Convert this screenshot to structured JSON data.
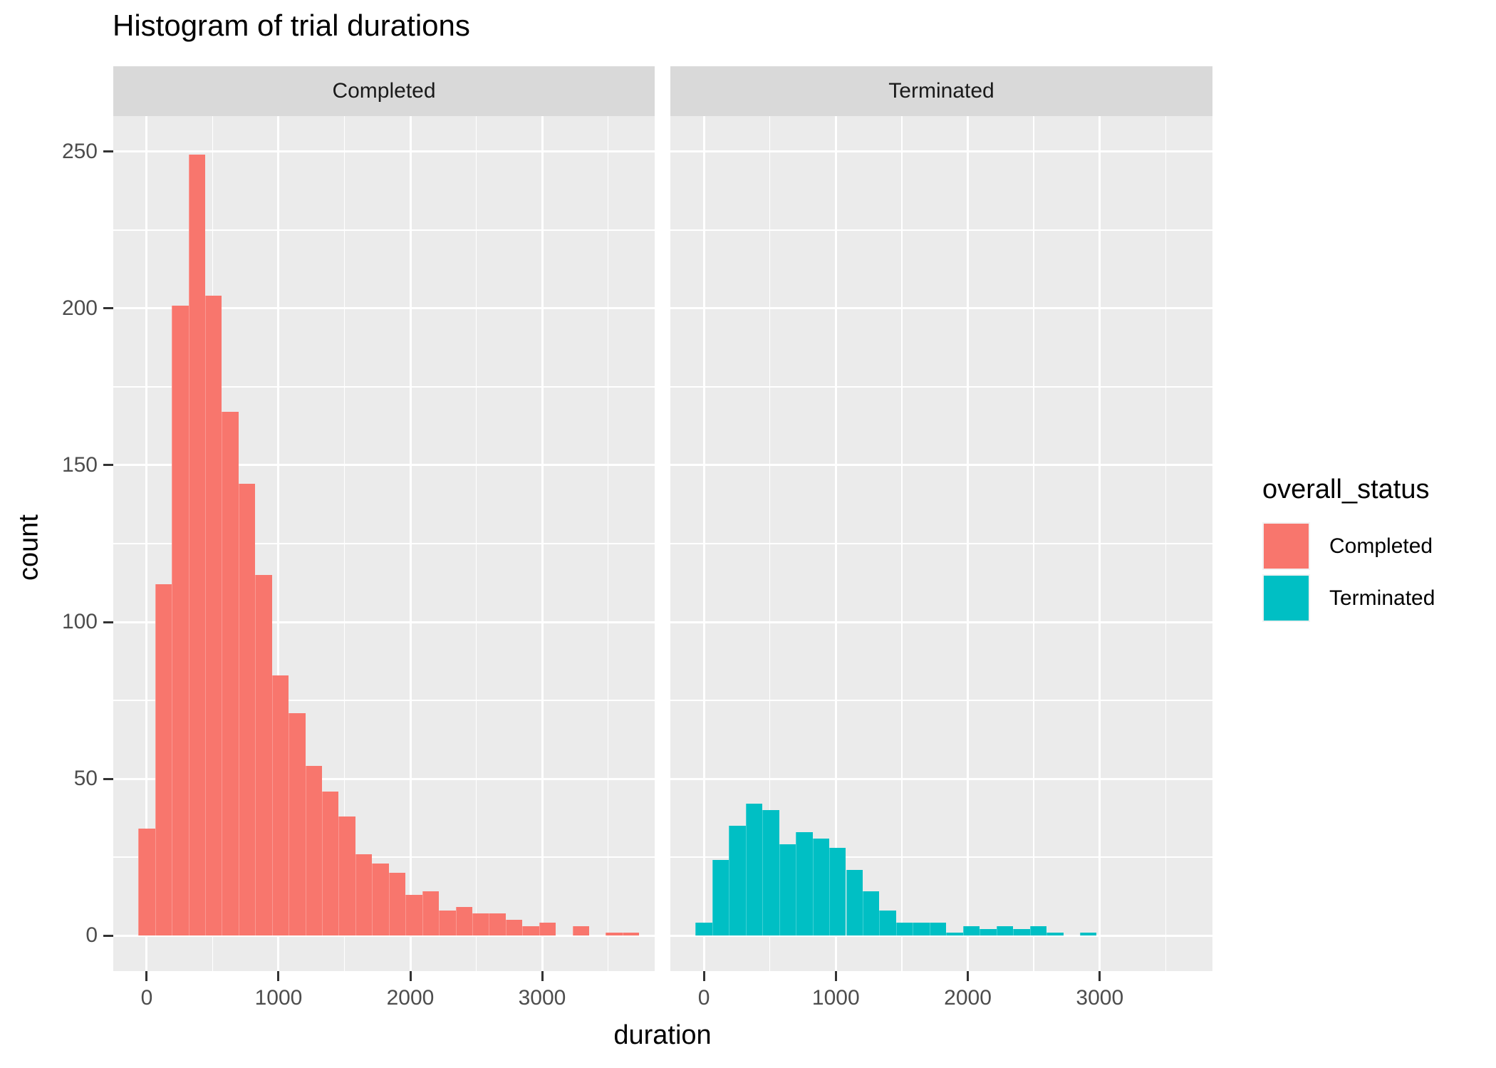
{
  "title": "Histogram of trial durations",
  "chart_data": {
    "type": "bar",
    "subtype": "faceted-histogram",
    "title": "Histogram of trial durations",
    "xlabel": "duration",
    "ylabel": "count",
    "bin_start": -63.33,
    "bin_width": 126.67,
    "x_range": [
      -254,
      3854
    ],
    "y_range": [
      -11.36,
      261.36
    ],
    "x_ticks": [
      0,
      1000,
      2000,
      3000
    ],
    "x_minor_ticks": [
      500,
      1500,
      2500,
      3500
    ],
    "y_ticks": [
      0,
      50,
      100,
      150,
      200,
      250
    ],
    "y_minor_ticks": [
      25,
      75,
      125,
      175,
      225
    ],
    "grid": "on",
    "legend_position": "right",
    "facets": [
      {
        "label": "Completed",
        "color": "#F8766D",
        "counts": [
          34,
          112,
          201,
          249,
          204,
          167,
          144,
          115,
          83,
          71,
          54,
          46,
          38,
          26,
          23,
          20,
          13,
          14,
          8,
          9,
          7,
          7,
          5,
          3,
          4,
          0,
          3,
          0,
          1,
          1
        ]
      },
      {
        "label": "Terminated",
        "color": "#00BFC4",
        "counts": [
          4,
          24,
          35,
          42,
          40,
          29,
          33,
          31,
          28,
          21,
          14,
          8,
          4,
          4,
          4,
          1,
          3,
          2,
          3,
          2,
          3,
          1,
          0,
          1,
          0,
          0,
          0,
          0,
          0,
          0
        ]
      }
    ]
  },
  "legend": {
    "title": "overall_status",
    "items": [
      {
        "label": "Completed",
        "color": "#F8766D"
      },
      {
        "label": "Terminated",
        "color": "#00BFC4"
      }
    ]
  },
  "colors": {
    "panel_background": "#EBEBEB",
    "strip_background": "#D9D9D9",
    "gridline": "#FFFFFF",
    "axis_text": "#4D4D4D",
    "tick_mark": "#333333",
    "strip_text": "#1A1A1A",
    "title_text": "#000000"
  }
}
